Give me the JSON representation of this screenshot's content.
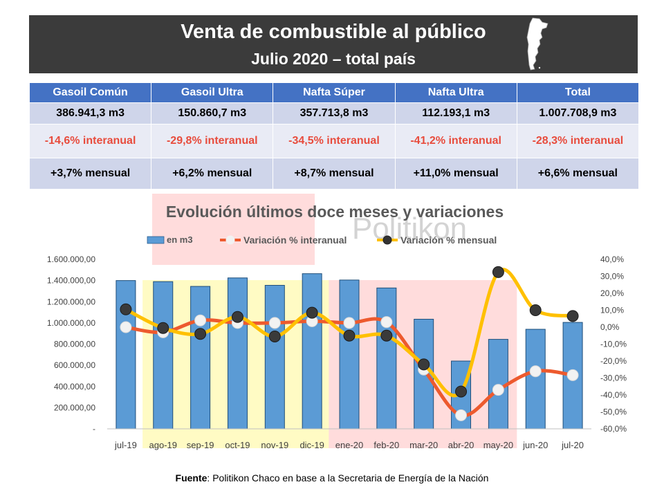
{
  "header": {
    "title": "Venta de combustible al público",
    "subtitle": "Julio 2020 – total país"
  },
  "summary": {
    "headers": [
      "Gasoil Común",
      "Gasoil Ultra",
      "Nafta Súper",
      "Nafta Ultra",
      "Total"
    ],
    "volumes": [
      "386.941,3 m3",
      "150.860,7 m3",
      "357.713,8 m3",
      "112.193,1 m3",
      "1.007.708,9 m3"
    ],
    "interanual": [
      "-14,6% interanual",
      "-29,8% interanual",
      "-34,5% interanual",
      "-41,2% interanual",
      "-28,3% interanual"
    ],
    "mensual": [
      "+3,7% mensual",
      "+6,2% mensual",
      "+8,7% mensual",
      "+11,0% mensual",
      "+6,6% mensual"
    ]
  },
  "watermark": "Politikon",
  "source": {
    "label": "Fuente",
    "text": ": Politikon Chaco en base a la Secretaria de Energía de la Nación"
  },
  "colors": {
    "header_bg": "#3b3b3b",
    "table_header": "#4472c4",
    "bar": "#5b9bd5",
    "interanual_line": "#ed5a2e",
    "mensual_line": "#ffc000",
    "negative_text": "#e84c3d"
  },
  "chart_data": {
    "type": "bar",
    "title": "Evolución últimos doce meses y variaciones",
    "categories": [
      "jul-19",
      "ago-19",
      "sep-19",
      "oct-19",
      "nov-19",
      "dic-19",
      "ene-20",
      "feb-20",
      "mar-20",
      "abr-20",
      "may-20",
      "jun-20",
      "jul-20"
    ],
    "series": [
      {
        "name": "en m3",
        "type": "bar",
        "axis": "left",
        "values": [
          1400000,
          1390000,
          1345000,
          1425000,
          1355000,
          1465000,
          1405000,
          1330000,
          1035000,
          640000,
          845000,
          940000,
          1005000
        ]
      },
      {
        "name": "Variación % interanual",
        "type": "line",
        "axis": "right",
        "values": [
          0.0,
          -3.0,
          4.0,
          2.5,
          2.5,
          3.5,
          2.5,
          3.0,
          -25.0,
          -52.0,
          -37.0,
          -26.0,
          -28.3
        ]
      },
      {
        "name": "Variación % mensual",
        "type": "line",
        "axis": "right",
        "values": [
          10.5,
          -0.5,
          -4.0,
          6.0,
          -5.5,
          8.5,
          -5.0,
          -5.0,
          -22.0,
          -38.0,
          32.5,
          10.0,
          6.6
        ]
      }
    ],
    "y_left": {
      "min": 0,
      "max": 1600000,
      "ticks": [
        "-",
        "200.000,00",
        "400.000,00",
        "600.000,00",
        "800.000,00",
        "1.000.000,00",
        "1.200.000,00",
        "1.400.000,00",
        "1.600.000,00"
      ]
    },
    "y_right": {
      "min": -60,
      "max": 40,
      "ticks": [
        "-60,0%",
        "-50,0%",
        "-40,0%",
        "-30,0%",
        "-20,0%",
        "-10,0%",
        "0,0%",
        "10,0%",
        "20,0%",
        "30,0%",
        "40,0%"
      ]
    },
    "legend_position": "top",
    "grid": false,
    "highlights": [
      {
        "color": "#fffbc4",
        "from": "ago-19",
        "to": "dic-19"
      },
      {
        "color": "#ffdcdc",
        "from": "ene-20",
        "to": "may-20"
      }
    ]
  }
}
